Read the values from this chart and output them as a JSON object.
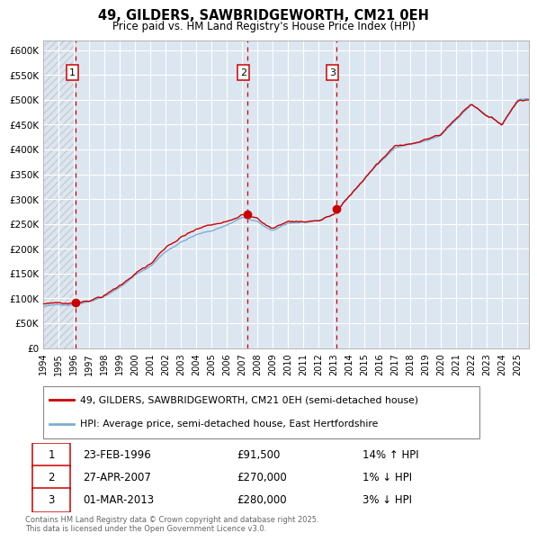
{
  "title": "49, GILDERS, SAWBRIDGEWORTH, CM21 0EH",
  "subtitle": "Price paid vs. HM Land Registry's House Price Index (HPI)",
  "legend_line1": "49, GILDERS, SAWBRIDGEWORTH, CM21 0EH (semi-detached house)",
  "legend_line2": "HPI: Average price, semi-detached house, East Hertfordshire",
  "sale_points": [
    {
      "label": "1",
      "date_str": "23-FEB-1996",
      "date_num": 1996.14,
      "price": 91500,
      "hpi_pct": "14% ↑ HPI"
    },
    {
      "label": "2",
      "date_str": "27-APR-2007",
      "date_num": 2007.32,
      "price": 270000,
      "hpi_pct": "1% ↓ HPI"
    },
    {
      "label": "3",
      "date_str": "01-MAR-2013",
      "date_num": 2013.17,
      "price": 280000,
      "hpi_pct": "3% ↓ HPI"
    }
  ],
  "ylim": [
    0,
    620000
  ],
  "xlim_start": 1994.0,
  "xlim_end": 2025.75,
  "background_color": "#dce6f1",
  "plot_bg_color": "#dce6f1",
  "line_color_red": "#cc0000",
  "line_color_blue": "#7bafd4",
  "dashed_vline_color": "#cc0000",
  "grid_color": "#ffffff",
  "footer": "Contains HM Land Registry data © Crown copyright and database right 2025.\nThis data is licensed under the Open Government Licence v3.0.",
  "ytick_labels": [
    "£0",
    "£50K",
    "£100K",
    "£150K",
    "£200K",
    "£250K",
    "£300K",
    "£350K",
    "£400K",
    "£450K",
    "£500K",
    "£550K",
    "£600K"
  ],
  "ytick_values": [
    0,
    50000,
    100000,
    150000,
    200000,
    250000,
    300000,
    350000,
    400000,
    450000,
    500000,
    550000,
    600000
  ],
  "xtick_years": [
    1994,
    1995,
    1996,
    1997,
    1998,
    1999,
    2000,
    2001,
    2002,
    2003,
    2004,
    2005,
    2006,
    2007,
    2008,
    2009,
    2010,
    2011,
    2012,
    2013,
    2014,
    2015,
    2016,
    2017,
    2018,
    2019,
    2020,
    2021,
    2022,
    2023,
    2024,
    2025
  ],
  "table_rows": [
    [
      "1",
      "23-FEB-1996",
      "£91,500",
      "14% ↑ HPI"
    ],
    [
      "2",
      "27-APR-2007",
      "£270,000",
      "1% ↓ HPI"
    ],
    [
      "3",
      "01-MAR-2013",
      "£280,000",
      "3% ↓ HPI"
    ]
  ]
}
